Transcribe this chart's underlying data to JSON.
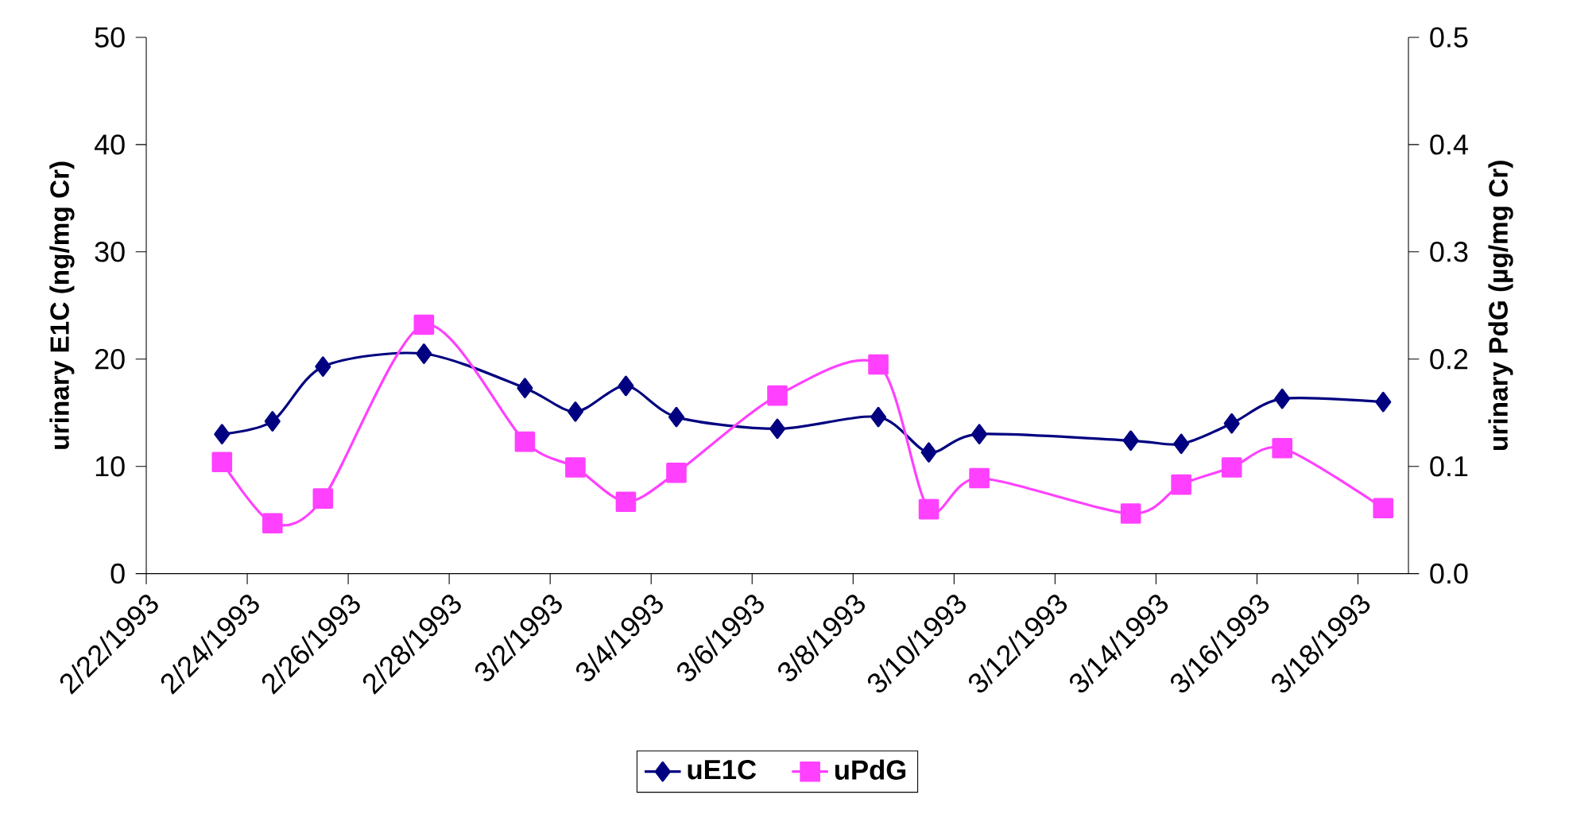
{
  "chart_data": {
    "type": "line",
    "ylabel": "urinary E1C (ng/mg Cr)",
    "y2label": "urinary PdG (µg/mg Cr)",
    "x": [
      "1993-02-23T12:00",
      "1993-02-24T12:00",
      "1993-02-25T12:00",
      "1993-02-27T12:00",
      "1993-03-01T12:00",
      "1993-03-02T12:00",
      "1993-03-03T12:00",
      "1993-03-04T12:00",
      "1993-03-06T12:00",
      "1993-03-08T12:00",
      "1993-03-09T12:00",
      "1993-03-10T12:00",
      "1993-03-13T12:00",
      "1993-03-14T12:00",
      "1993-03-15T12:00",
      "1993-03-16T12:00",
      "1993-03-18T12:00"
    ],
    "series": [
      {
        "name": "uE1C",
        "color": "#000080",
        "marker": "diamond",
        "values": [
          13.0,
          14.2,
          19.3,
          20.5,
          17.3,
          15.1,
          17.5,
          14.6,
          13.5,
          14.6,
          11.3,
          13.0,
          12.4,
          12.1,
          14.0,
          16.3,
          16.0
        ]
      },
      {
        "name": "uPdG",
        "color": "#ff40ff",
        "marker": "square",
        "axis": "y2",
        "values": [
          0.104,
          0.047,
          0.07,
          0.232,
          0.123,
          0.099,
          0.067,
          0.094,
          0.166,
          0.195,
          0.06,
          0.089,
          0.056,
          0.083,
          0.099,
          0.117,
          0.061
        ]
      }
    ],
    "xlim": [
      "1993-02-22",
      "1993-03-19"
    ],
    "xticks": [
      {
        "value": "1993-02-22",
        "label": "2/22/1993"
      },
      {
        "value": "1993-02-24",
        "label": "2/24/1993"
      },
      {
        "value": "1993-02-26",
        "label": "2/26/1993"
      },
      {
        "value": "1993-02-28",
        "label": "2/28/1993"
      },
      {
        "value": "1993-03-02",
        "label": "3/2/1993"
      },
      {
        "value": "1993-03-04",
        "label": "3/4/1993"
      },
      {
        "value": "1993-03-06",
        "label": "3/6/1993"
      },
      {
        "value": "1993-03-08",
        "label": "3/8/1993"
      },
      {
        "value": "1993-03-10",
        "label": "3/10/1993"
      },
      {
        "value": "1993-03-12",
        "label": "3/12/1993"
      },
      {
        "value": "1993-03-14",
        "label": "3/14/1993"
      },
      {
        "value": "1993-03-16",
        "label": "3/16/1993"
      },
      {
        "value": "1993-03-18",
        "label": "3/18/1993"
      }
    ],
    "ylim": [
      0,
      50
    ],
    "yticks": [
      0,
      10,
      20,
      30,
      40,
      50
    ],
    "y2lim": [
      0,
      0.5
    ],
    "y2ticks": [
      {
        "value": 0,
        "label": "0.0"
      },
      {
        "value": 0.1,
        "label": "0.1"
      },
      {
        "value": 0.2,
        "label": "0.2"
      },
      {
        "value": 0.3,
        "label": "0.3"
      },
      {
        "value": 0.4,
        "label": "0.4"
      },
      {
        "value": 0.5,
        "label": "0.5"
      }
    ],
    "legend": "bottom",
    "line_style": "solid"
  }
}
